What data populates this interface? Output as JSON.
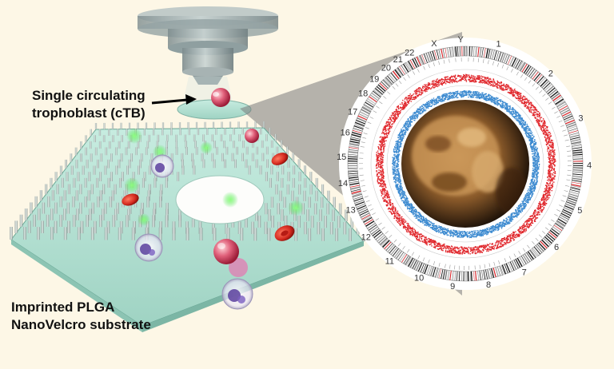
{
  "labels": {
    "ctb_line1": "Single circulating",
    "ctb_line2": "trophoblast (cTB)",
    "substrate_line1": "Imprinted PLGA",
    "substrate_line2": "NanoVelcro substrate"
  },
  "chromosomes": [
    "1",
    "2",
    "3",
    "4",
    "5",
    "6",
    "7",
    "8",
    "9",
    "10",
    "11",
    "12",
    "13",
    "14",
    "15",
    "16",
    "17",
    "18",
    "19",
    "20",
    "21",
    "22",
    "X",
    "Y"
  ],
  "colors": {
    "background": "#fdf7e6",
    "substrate": "#bfe3d8",
    "red_track": "#e0262b",
    "blue_track": "#3c8ad0",
    "cell_red": "#e2342c",
    "glow_green": "#46e24a"
  },
  "icons": [
    "microscope-lens",
    "arrow-right",
    "red-blood-cell",
    "white-blood-cell",
    "fetal-image"
  ]
}
